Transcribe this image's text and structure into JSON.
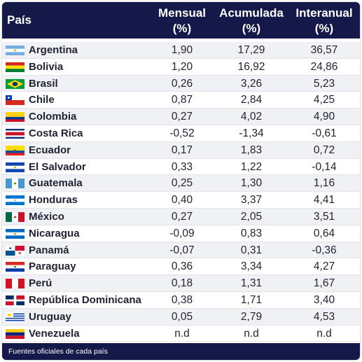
{
  "chart_data": {
    "type": "table",
    "columns": [
      {
        "key": "country",
        "label_line1": "País",
        "label_line2": ""
      },
      {
        "key": "mensual",
        "label_line1": "Mensual",
        "label_line2": "(%)"
      },
      {
        "key": "acumulada",
        "label_line1": "Acumulada",
        "label_line2": "(%)"
      },
      {
        "key": "interanual",
        "label_line1": "Interanual",
        "label_line2": "(%)"
      }
    ],
    "rows": [
      {
        "country": "Argentina",
        "flag": "argentina-flag",
        "mensual": "1,90",
        "acumulada": "17,29",
        "interanual": "36,57"
      },
      {
        "country": "Bolivia",
        "flag": "bolivia-flag",
        "mensual": "1,20",
        "acumulada": "16,92",
        "interanual": "24,86"
      },
      {
        "country": "Brasil",
        "flag": "brasil-flag",
        "mensual": "0,26",
        "acumulada": "3,26",
        "interanual": "5,23"
      },
      {
        "country": "Chile",
        "flag": "chile-flag",
        "mensual": "0,87",
        "acumulada": "2,84",
        "interanual": "4,25"
      },
      {
        "country": "Colombia",
        "flag": "colombia-flag",
        "mensual": "0,27",
        "acumulada": "4,02",
        "interanual": "4,90"
      },
      {
        "country": "Costa Rica",
        "flag": "costa-rica-flag",
        "mensual": "-0,52",
        "acumulada": "-1,34",
        "interanual": "-0,61"
      },
      {
        "country": "Ecuador",
        "flag": "ecuador-flag",
        "mensual": "0,17",
        "acumulada": "1,83",
        "interanual": "0,72"
      },
      {
        "country": "El Salvador",
        "flag": "el-salvador-flag",
        "mensual": "0,33",
        "acumulada": "1,22",
        "interanual": "-0,14"
      },
      {
        "country": "Guatemala",
        "flag": "guatemala-flag",
        "mensual": "0,25",
        "acumulada": "1,30",
        "interanual": "1,16"
      },
      {
        "country": "Honduras",
        "flag": "honduras-flag",
        "mensual": "0,40",
        "acumulada": "3,37",
        "interanual": "4,41"
      },
      {
        "country": "México",
        "flag": "mexico-flag",
        "mensual": "0,27",
        "acumulada": "2,05",
        "interanual": "3,51"
      },
      {
        "country": "Nicaragua",
        "flag": "nicaragua-flag",
        "mensual": "-0,09",
        "acumulada": "0,83",
        "interanual": "0,64"
      },
      {
        "country": "Panamá",
        "flag": "panama-flag",
        "mensual": "-0,07",
        "acumulada": "0,31",
        "interanual": "-0,36"
      },
      {
        "country": "Paraguay",
        "flag": "paraguay-flag",
        "mensual": "0,36",
        "acumulada": "3,34",
        "interanual": "4,27"
      },
      {
        "country": "Perú",
        "flag": "peru-flag",
        "mensual": "0,18",
        "acumulada": "1,31",
        "interanual": "1,67"
      },
      {
        "country": "República Dominicana",
        "flag": "dominican-republic-flag",
        "mensual": "0,38",
        "acumulada": "1,71",
        "interanual": "3,40"
      },
      {
        "country": "Uruguay",
        "flag": "uruguay-flag",
        "mensual": "0,05",
        "acumulada": "2,79",
        "interanual": "4,53"
      },
      {
        "country": "Venezuela",
        "flag": "venezuela-flag",
        "mensual": "n.d",
        "acumulada": "n.d",
        "interanual": "n.d"
      }
    ],
    "footer": "Fuentes oficiales de cada país"
  },
  "colors": {
    "header_bg": "#14194a",
    "header_text": "#ffffff",
    "row_alt": "#f0f1f5",
    "text": "#1f2230"
  }
}
